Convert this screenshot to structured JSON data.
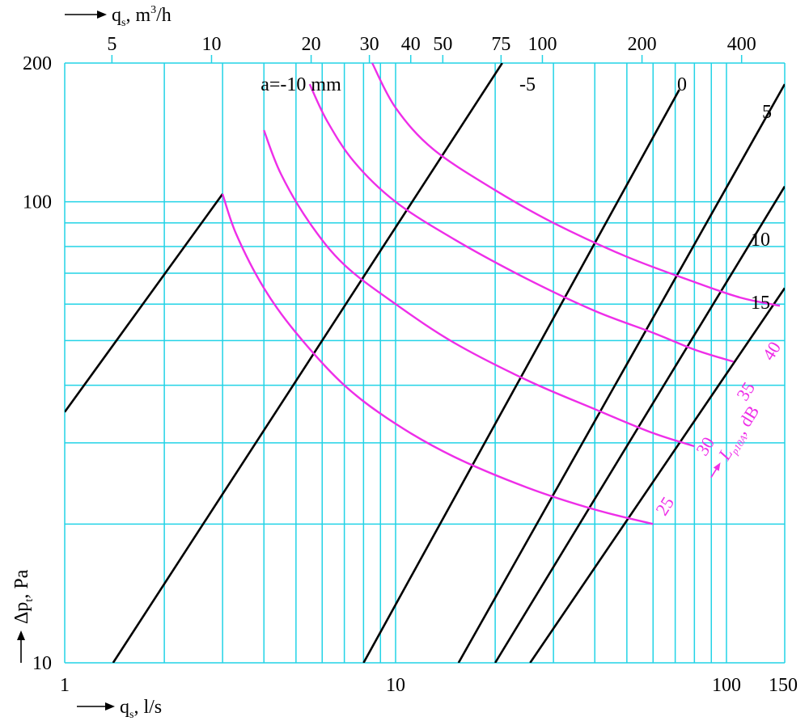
{
  "chart_data": {
    "type": "line",
    "scale": "log-log",
    "xaxis_bottom": {
      "unit_label": "q",
      "unit_sub": "s",
      "unit_rest": ", l/s",
      "range": [
        1,
        150
      ],
      "tick_labels": [
        {
          "value": 1,
          "label": "1"
        },
        {
          "value": 10,
          "label": "10"
        },
        {
          "value": 100,
          "label": "100"
        },
        {
          "value": 150,
          "label": "150"
        }
      ]
    },
    "xaxis_top": {
      "unit_label": "q",
      "unit_sub": "s",
      "unit_rest": ", m",
      "unit_sup": "3",
      "unit_tail": "/h",
      "tick_labels": [
        {
          "value": 5,
          "label": "5"
        },
        {
          "value": 10,
          "label": "10"
        },
        {
          "value": 20,
          "label": "20"
        },
        {
          "value": 30,
          "label": "30"
        },
        {
          "value": 40,
          "label": "40"
        },
        {
          "value": 50,
          "label": "50"
        },
        {
          "value": 75,
          "label": "75"
        },
        {
          "value": 100,
          "label": "100"
        },
        {
          "value": 200,
          "label": "200"
        },
        {
          "value": 400,
          "label": "400"
        }
      ]
    },
    "yaxis": {
      "unit_label": "Δp",
      "unit_sub": "t",
      "unit_rest": ", Pa",
      "range": [
        10,
        200
      ],
      "tick_labels": [
        {
          "value": 10,
          "label": "10"
        },
        {
          "value": 100,
          "label": "100"
        },
        {
          "value": 200,
          "label": "200"
        }
      ]
    },
    "grid_x": [
      1,
      2,
      3,
      4,
      5,
      6,
      7,
      8,
      9,
      10,
      20,
      30,
      40,
      50,
      60,
      70,
      80,
      90,
      100,
      150
    ],
    "grid_y": [
      10,
      20,
      30,
      40,
      50,
      60,
      70,
      80,
      90,
      100,
      200
    ],
    "a_series": [
      {
        "name": "a=-10 mm",
        "points": [
          [
            1,
            35.0
          ],
          [
            3.0,
            104.0
          ]
        ]
      },
      {
        "name": "-5",
        "points": [
          [
            1.4,
            10
          ],
          [
            21,
            200
          ]
        ]
      },
      {
        "name": "0",
        "points": [
          [
            8.0,
            10
          ],
          [
            72,
            175
          ]
        ]
      },
      {
        "name": "5",
        "points": [
          [
            15.5,
            10
          ],
          [
            150,
            180
          ]
        ]
      },
      {
        "name": "10",
        "points": [
          [
            20,
            10
          ],
          [
            150,
            108
          ]
        ]
      },
      {
        "name": "15",
        "points": [
          [
            25.5,
            10
          ],
          [
            150,
            65
          ]
        ]
      }
    ],
    "level_series": [
      {
        "name": "25",
        "points": [
          [
            3.0,
            104
          ],
          [
            3.3,
            85
          ],
          [
            4.0,
            65
          ],
          [
            5.0,
            52
          ],
          [
            7.0,
            40
          ],
          [
            10,
            33
          ],
          [
            15,
            28
          ],
          [
            25,
            24
          ],
          [
            40,
            21.5
          ],
          [
            60,
            20
          ]
        ]
      },
      {
        "name": "30",
        "points": [
          [
            4.0,
            143
          ],
          [
            4.5,
            115
          ],
          [
            5.5,
            90
          ],
          [
            7.0,
            73
          ],
          [
            10,
            60
          ],
          [
            15,
            49.5
          ],
          [
            25,
            41
          ],
          [
            40,
            35.5
          ],
          [
            60,
            31.5
          ],
          [
            80,
            29.5
          ]
        ]
      },
      {
        "name": "35",
        "points": [
          [
            5.5,
            180
          ],
          [
            6.2,
            150
          ],
          [
            7.5,
            122
          ],
          [
            10,
            100
          ],
          [
            15,
            83
          ],
          [
            25,
            68
          ],
          [
            40,
            58
          ],
          [
            60,
            52
          ],
          [
            80,
            47.8
          ],
          [
            105,
            45
          ]
        ]
      },
      {
        "name": "40",
        "points": [
          [
            8.5,
            200
          ],
          [
            10,
            160
          ],
          [
            13,
            130
          ],
          [
            20,
            106
          ],
          [
            30,
            90
          ],
          [
            50,
            76
          ],
          [
            80,
            67
          ],
          [
            110,
            62
          ],
          [
            145,
            59.5
          ]
        ]
      }
    ],
    "level_axis_label": {
      "prefix": "L",
      "sub": "p10A",
      "rest": ", dB"
    }
  }
}
